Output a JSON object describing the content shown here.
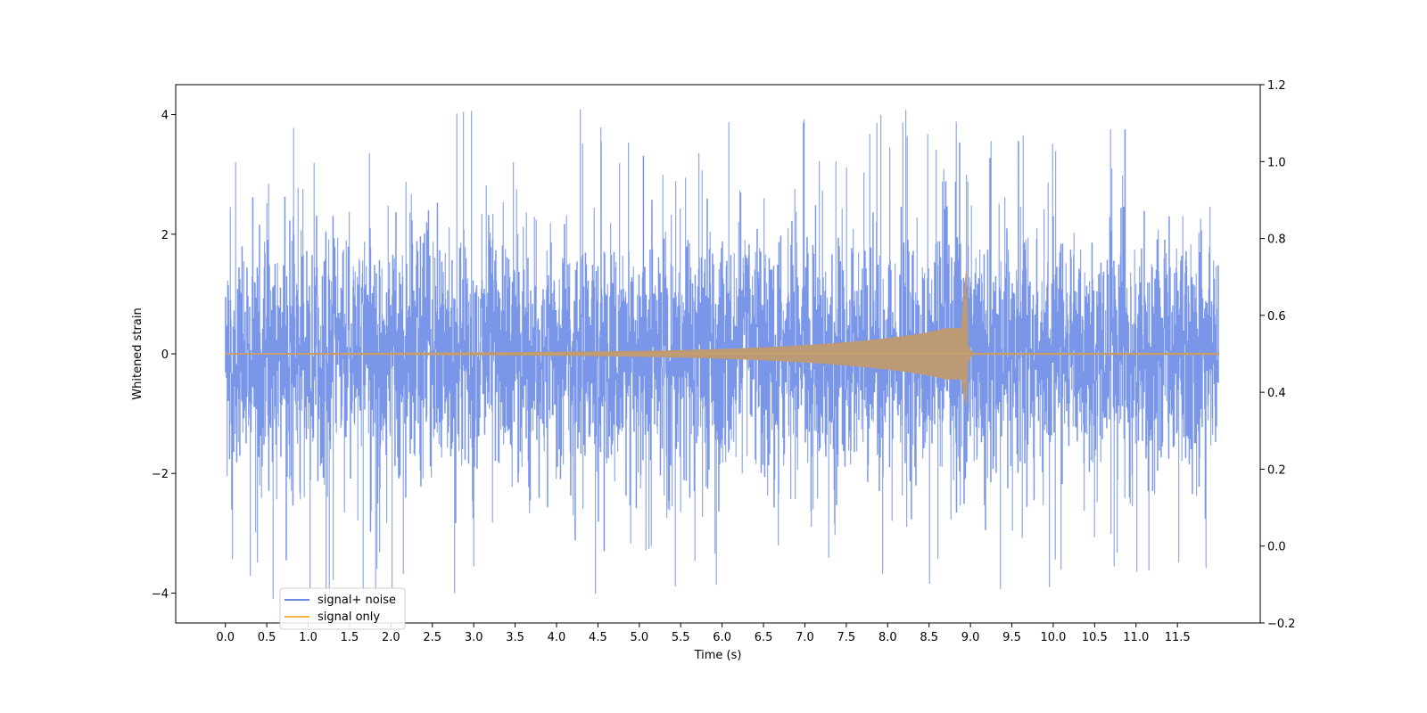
{
  "chart_data": {
    "type": "line",
    "xlabel": "Time (s)",
    "ylabel": "Whitened strain",
    "xlim": [
      -0.6,
      12.5
    ],
    "ylim": [
      -4.5,
      4.5
    ],
    "y2lim": [
      -0.2,
      1.2
    ],
    "x_ticks": [
      "0.0",
      "0.5",
      "1.0",
      "1.5",
      "2.0",
      "2.5",
      "3.0",
      "3.5",
      "4.0",
      "4.5",
      "5.0",
      "5.5",
      "6.0",
      "6.5",
      "7.0",
      "7.5",
      "8.0",
      "8.5",
      "9.0",
      "9.5",
      "10.0",
      "10.5",
      "11.0",
      "11.5"
    ],
    "y_ticks": [
      "4",
      "2",
      "0",
      "−2",
      "−4"
    ],
    "y2_ticks": [
      "1.2",
      "1.0",
      "0.8",
      "0.6",
      "0.4",
      "0.2",
      "0.0",
      "−0.2"
    ],
    "legend_position": "lower-left",
    "series": [
      {
        "name": "signal+ noise",
        "color": "#6b8be6",
        "t_start": 0.0,
        "t_end": 12.0,
        "envelope_typical": 1.6,
        "peak_max": 4.1,
        "peak_min": -4.1
      },
      {
        "name": "signal only",
        "color": "#f5b347",
        "merger_time": 8.95,
        "chirp_onset": 4.5,
        "peak_max": 1.4,
        "peak_min": -0.85,
        "amplitude_before_merger": 0.42
      }
    ]
  }
}
